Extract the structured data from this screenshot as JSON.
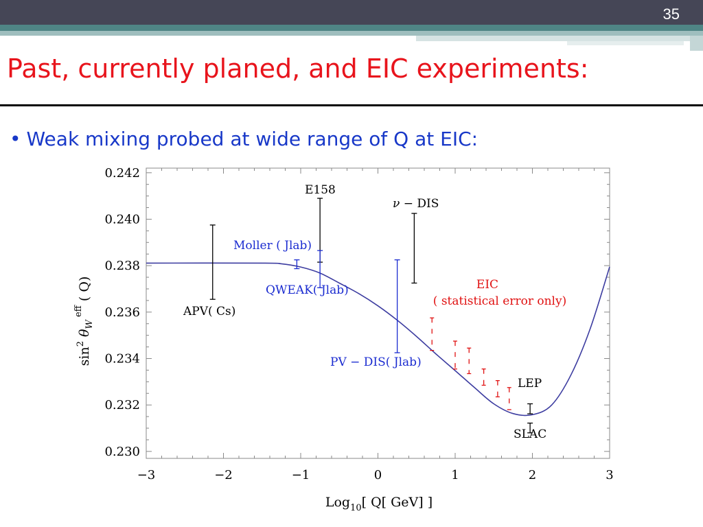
{
  "slide": {
    "number": "35",
    "title": "Past, currently planed, and EIC experiments:",
    "bullet_marker": "•",
    "bullet_text": "Weak mixing probed at wide range of Q at EIC:"
  },
  "colors": {
    "title": "#e8141c",
    "bullet": "#1838c8",
    "curve": "#3c3ca0",
    "past": "#000000",
    "planned": "#1a2bd0",
    "eic": "#e01010"
  },
  "chart_data": {
    "type": "scatter",
    "xlim": [
      -3,
      3
    ],
    "ylim": [
      0.2297,
      0.2422
    ],
    "x_ticks": [
      "−3",
      "−2",
      "−1",
      "0",
      "1",
      "2",
      "3"
    ],
    "y_ticks": [
      "0.242",
      "0.240",
      "0.238",
      "0.236",
      "0.234",
      "0.232",
      "0.230"
    ],
    "xlabel": {
      "pre": "Log",
      "sub": "10",
      "post": "[ Q[ GeV] ]"
    },
    "ylabel": {
      "main": "sin",
      "sup": "2",
      "theta": "θ",
      "w": "W",
      "eff": "eff",
      "q": "( Q)"
    },
    "curve": {
      "x": [
        -3.0,
        -1.5,
        -1.25,
        -1.0,
        -0.75,
        -0.5,
        -0.25,
        0.0,
        0.25,
        0.5,
        0.75,
        1.0,
        1.25,
        1.5,
        1.75,
        2.0,
        2.25,
        2.5,
        2.75,
        3.0
      ],
      "y": [
        0.23811,
        0.23811,
        0.23808,
        0.23794,
        0.23768,
        0.23725,
        0.2368,
        0.23627,
        0.23565,
        0.23495,
        0.2342,
        0.23348,
        0.23275,
        0.23205,
        0.23163,
        0.23158,
        0.232,
        0.2333,
        0.2353,
        0.23795
      ]
    },
    "past_points": [
      {
        "x": -2.14,
        "ylow": 0.23655,
        "yhigh": 0.23975,
        "label": "APV( Cs)"
      },
      {
        "x": -0.75,
        "ylow": 0.23815,
        "yhigh": 0.2409,
        "label": "E158"
      },
      {
        "x": 0.47,
        "ylow": 0.23725,
        "yhigh": 0.24025,
        "label_symbol": "ν",
        "label": "− DIS"
      },
      {
        "x": 1.97,
        "ylow": 0.23162,
        "yhigh": 0.23205,
        "label": "LEP"
      },
      {
        "x": 1.97,
        "ylow": 0.2308,
        "yhigh": 0.23122,
        "label": "SLAC"
      }
    ],
    "planned_points": [
      {
        "x": -1.05,
        "ylow": 0.23787,
        "yhigh": 0.23825,
        "label": "Moller ( Jlab)"
      },
      {
        "x": -0.75,
        "ylow": 0.23705,
        "yhigh": 0.23865,
        "label": "QWEAK( Jlab)"
      },
      {
        "x": 0.25,
        "ylow": 0.23425,
        "yhigh": 0.23825,
        "label": "PV − DIS( Jlab)"
      }
    ],
    "eic_points": [
      {
        "x": 0.7,
        "ylow": 0.23435,
        "yhigh": 0.23575
      },
      {
        "x": 1.0,
        "ylow": 0.23355,
        "yhigh": 0.23475
      },
      {
        "x": 1.18,
        "ylow": 0.23335,
        "yhigh": 0.23445
      },
      {
        "x": 1.37,
        "ylow": 0.23285,
        "yhigh": 0.23355
      },
      {
        "x": 1.55,
        "ylow": 0.23235,
        "yhigh": 0.23305
      },
      {
        "x": 1.7,
        "ylow": 0.2318,
        "yhigh": 0.23275
      }
    ],
    "eic_label": [
      "EIC",
      "( statistical  error  only)"
    ]
  }
}
